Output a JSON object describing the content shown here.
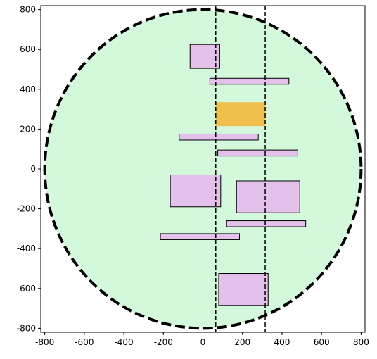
{
  "chart_data": {
    "type": "scatter",
    "title": "",
    "xlabel": "",
    "ylabel": "",
    "xlim": [
      -820,
      820
    ],
    "ylim": [
      -820,
      820
    ],
    "xticks": [
      -800,
      -600,
      -400,
      -200,
      0,
      200,
      400,
      600,
      800
    ],
    "yticks": [
      -800,
      -600,
      -400,
      -200,
      0,
      200,
      400,
      600,
      800
    ],
    "grid": false,
    "circle": {
      "cx": 0,
      "cy": 0,
      "r": 800,
      "fill": "#d4f8dc",
      "stroke": "#000000",
      "style": "dashed"
    },
    "vertical_lines": [
      {
        "x": 65,
        "style": "dashed",
        "color": "#000000"
      },
      {
        "x": 315,
        "style": "dashed",
        "color": "#000000"
      }
    ],
    "highlight_rect": {
      "x0": 65,
      "x1": 315,
      "y0": 215,
      "y1": 335,
      "fill": "#f2bc42"
    },
    "rectangles": [
      {
        "x0": -65,
        "x1": 85,
        "y0": 505,
        "y1": 625
      },
      {
        "x0": 35,
        "x1": 435,
        "y0": 425,
        "y1": 455
      },
      {
        "x0": -120,
        "x1": 280,
        "y0": 145,
        "y1": 175
      },
      {
        "x0": 75,
        "x1": 480,
        "y0": 65,
        "y1": 95
      },
      {
        "x0": -165,
        "x1": 90,
        "y0": -190,
        "y1": -30
      },
      {
        "x0": 170,
        "x1": 490,
        "y0": -220,
        "y1": -60
      },
      {
        "x0": 120,
        "x1": 520,
        "y0": -290,
        "y1": -260
      },
      {
        "x0": -215,
        "x1": 185,
        "y0": -355,
        "y1": -325
      },
      {
        "x0": 80,
        "x1": 330,
        "y0": -685,
        "y1": -525
      }
    ],
    "rect_fill": "#e3c1ea",
    "rect_stroke": "#000000"
  }
}
